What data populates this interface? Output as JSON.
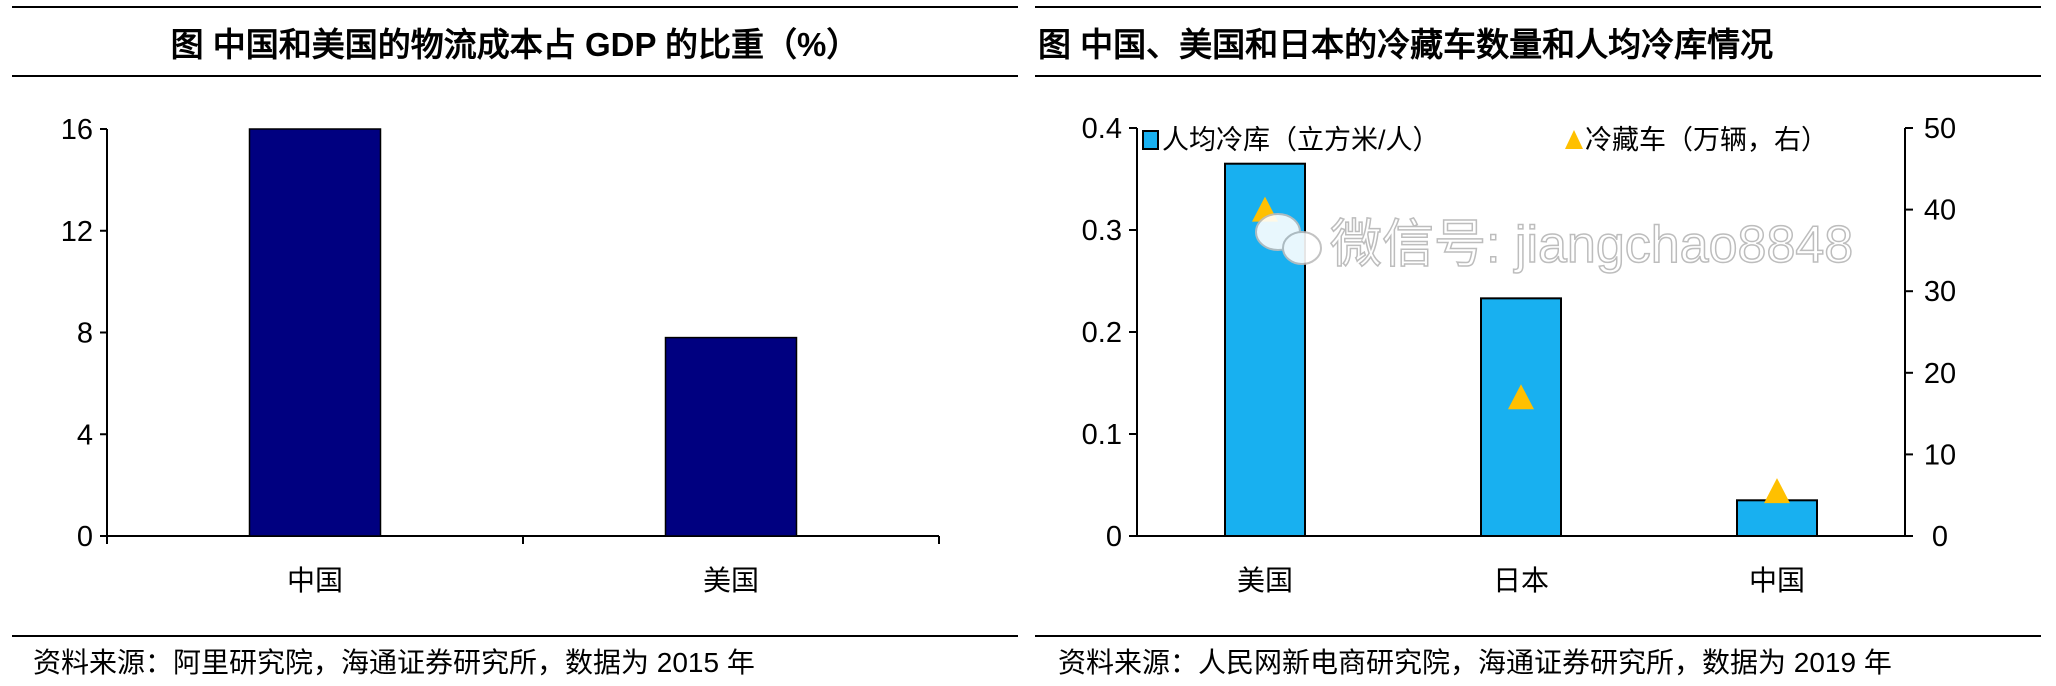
{
  "chart_data": [
    {
      "type": "bar",
      "title": "图  中国和美国的物流成本占 GDP 的比重（%）",
      "categories": [
        "中国",
        "美国"
      ],
      "values": [
        16,
        7.8
      ],
      "ylim": [
        0,
        16
      ],
      "yticks": [
        0,
        4,
        8,
        12,
        16
      ],
      "xlabel": "",
      "ylabel": "",
      "grid": false,
      "bar_color": "#000080",
      "source": "资料来源：阿里研究院，海通证券研究所，数据为 2015 年"
    },
    {
      "type": "bar",
      "title": "图  中国、美国和日本的冷藏车数量和人均冷库情况",
      "categories": [
        "美国",
        "日本",
        "中国"
      ],
      "series": [
        {
          "name": "人均冷库（立方米/人）",
          "type": "bar",
          "axis": "left",
          "values": [
            0.365,
            0.233,
            0.035
          ],
          "color": "#18B0F0"
        },
        {
          "name": "冷藏车（万辆，右）",
          "type": "scatter",
          "marker": "triangle",
          "axis": "right",
          "values": [
            40,
            17,
            5.5
          ],
          "color": "#FFC000"
        }
      ],
      "ylim_left": [
        0,
        0.4
      ],
      "yticks_left": [
        "0",
        "0.1",
        "0.2",
        "0.3",
        "0.4"
      ],
      "ylim_right": [
        0,
        50
      ],
      "yticks_right": [
        "0",
        "10",
        "20",
        "30",
        "40",
        "50"
      ],
      "legend_position": "top",
      "grid": false,
      "source": "资料来源：人民网新电商研究院，海通证券研究所，数据为 2019 年"
    }
  ],
  "watermark": "微信号: jiangchao8848"
}
